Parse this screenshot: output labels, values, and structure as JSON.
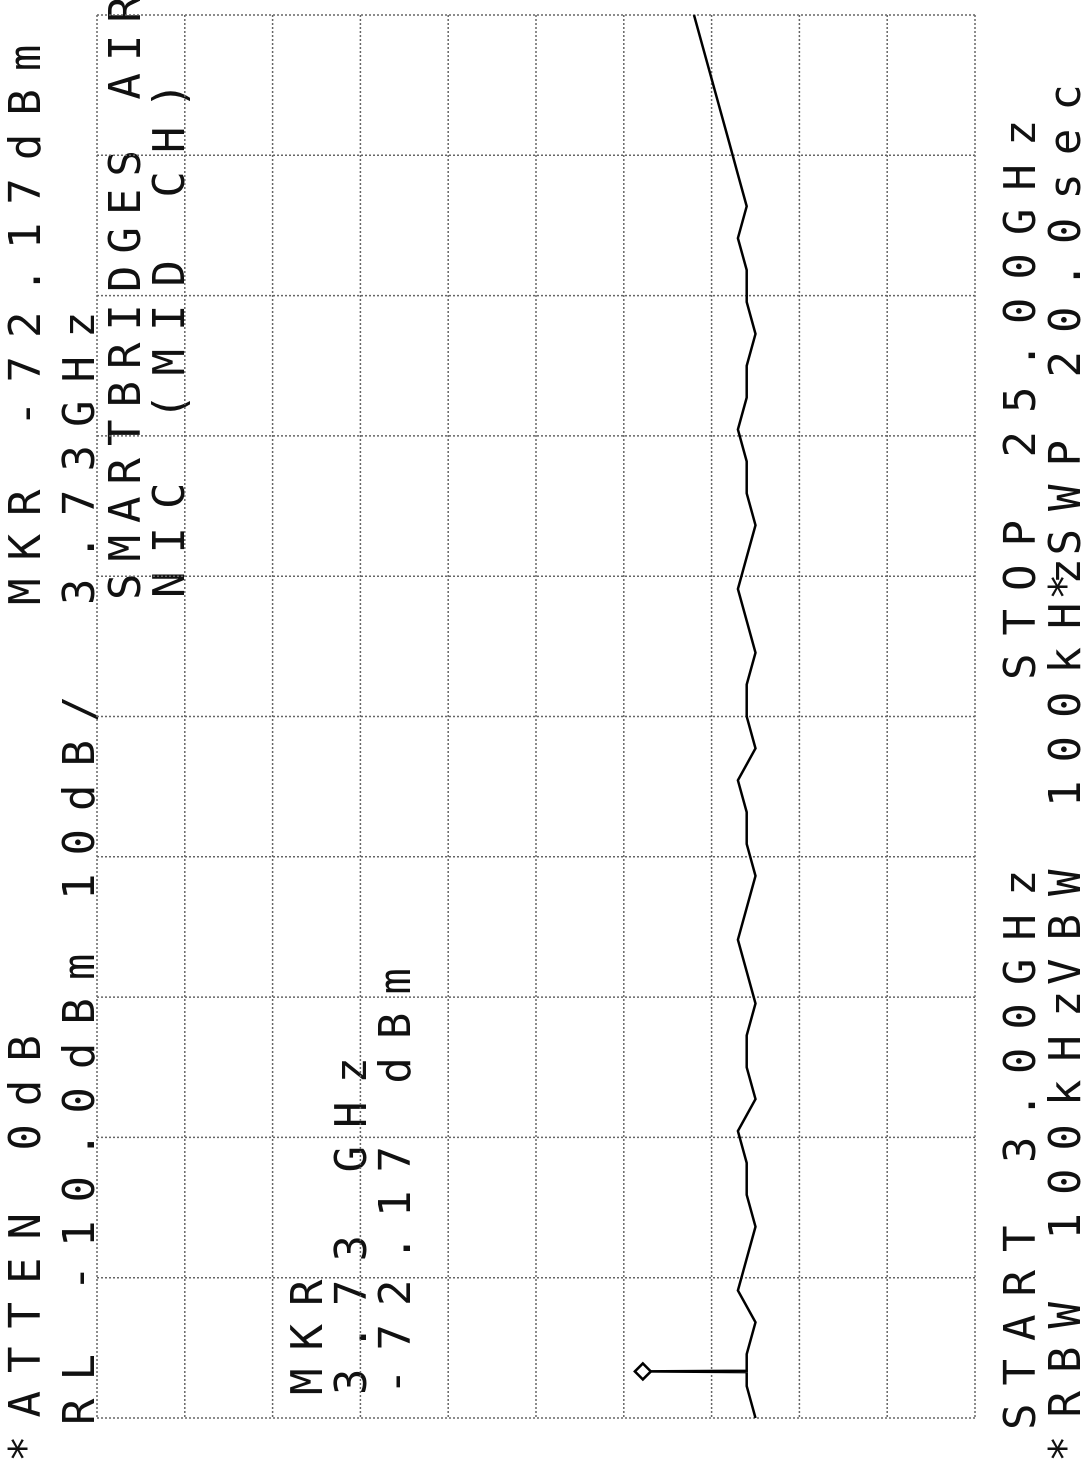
{
  "chart_data": {
    "type": "line",
    "orientation": "rotated",
    "texts": {
      "atten": "*ATTEN 0dB",
      "ref_level": "RL -10.0dBm",
      "scale": "10dB/",
      "marker_level": "MKR -72.17dBm",
      "marker_freq": "3.73GHz",
      "title": "SMARTBRIDGES  AIR",
      "subtitle": "NIC (MID CH)",
      "box_mkr": "MKR",
      "box_freq": "3.73 GHz",
      "box_level": "-72.17 dBm",
      "start": "START 3.00GHz",
      "stop": "STOP 25.00GHz",
      "rbw": "*RBW 100kHz",
      "vbw": "VBW 100kHz",
      "sweep": "*SWP 20.0sec"
    },
    "x": [
      3.0,
      3.5,
      3.72,
      3.73,
      3.74,
      4.0,
      4.5,
      5.0,
      5.5,
      6.0,
      6.5,
      7.0,
      7.5,
      8.0,
      8.5,
      9.0,
      9.5,
      10.0,
      10.5,
      11.0,
      11.5,
      12.0,
      12.5,
      13.0,
      13.5,
      14.0,
      14.5,
      15.0,
      15.5,
      16.0,
      16.5,
      17.0,
      17.5,
      18.0,
      18.5,
      19.0,
      19.5,
      20.0,
      20.5,
      21.0,
      21.5,
      22.0,
      22.5,
      23.0,
      23.5,
      24.0,
      24.5,
      25.0
    ],
    "series": [
      {
        "color": "#000000",
        "values": [
          -85,
          -84,
          -84,
          -72.17,
          -84,
          -84,
          -85,
          -83,
          -84,
          -85,
          -84,
          -84,
          -83,
          -85,
          -84,
          -84,
          -85,
          -84,
          -83,
          -84,
          -85,
          -84,
          -84,
          -83,
          -85,
          -84,
          -84,
          -85,
          -84,
          -83,
          -84,
          -85,
          -84,
          -84,
          -83,
          -84,
          -84,
          -85,
          -84,
          -84,
          -83,
          -84,
          -83,
          -82,
          -81,
          -80,
          -79,
          -78
        ]
      }
    ],
    "marker": {
      "x": 3.73,
      "value": -72.17
    },
    "xlim": [
      3,
      25
    ],
    "ylim": [
      -110,
      -10
    ],
    "xticks": [
      3,
      5.2,
      7.4,
      9.6,
      11.8,
      14,
      16.2,
      18.4,
      20.6,
      22.8,
      25
    ],
    "yticks": [
      -110,
      -100,
      -90,
      -80,
      -70,
      -60,
      -50,
      -40,
      -30,
      -20,
      -10
    ],
    "grid": true
  }
}
